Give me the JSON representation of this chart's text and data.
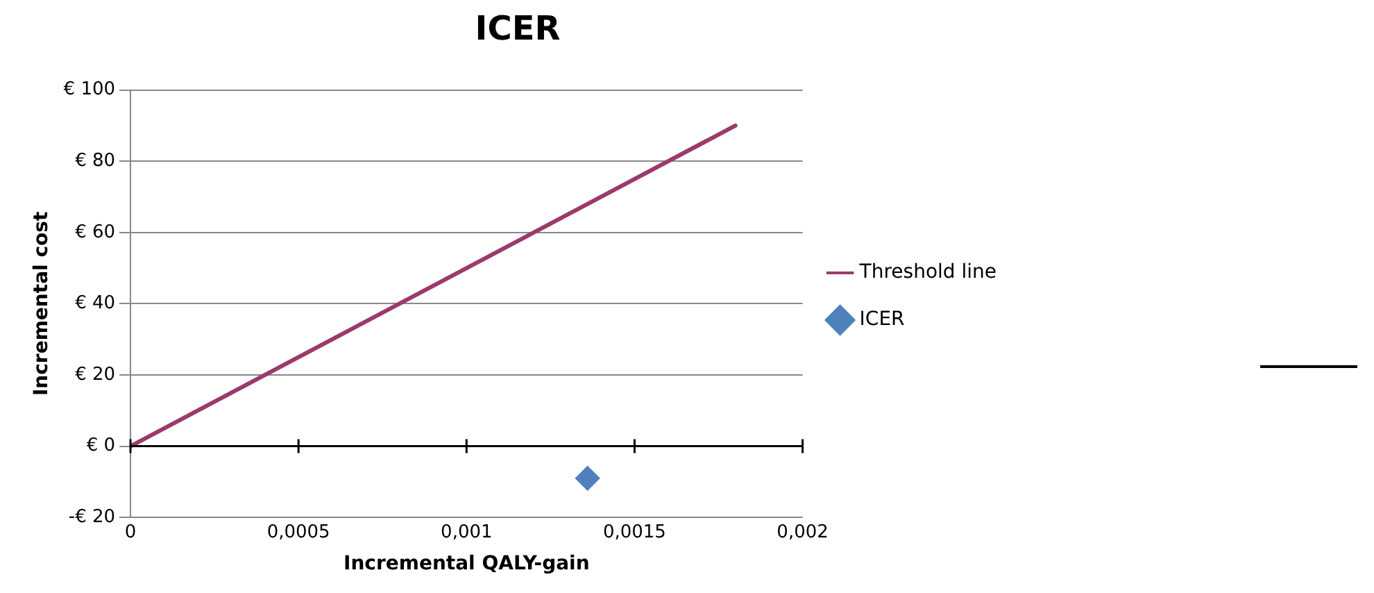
{
  "chart_data": {
    "type": "scatter",
    "title": "ICER",
    "xlabel": "Incremental QALY-gain",
    "ylabel": "Incremental cost",
    "series": [
      {
        "name": "Threshold line",
        "type": "line",
        "color": "#9b3a6b",
        "marker": "none",
        "x": [
          0,
          0.0018
        ],
        "values": [
          0,
          90
        ]
      },
      {
        "name": "ICER",
        "color": "#4f81bd",
        "marker": "diamond",
        "x": [
          0.00136
        ],
        "values": [
          -9
        ]
      }
    ],
    "xlim": [
      0,
      0.002
    ],
    "xticks": [
      0,
      {
        "value": 0.0005,
        "label": "0,0005"
      },
      {
        "value": 0.001,
        "label": "0,001"
      },
      {
        "value": 0.0015,
        "label": "0,0015"
      },
      {
        "value": 0.002,
        "label": "0,002"
      }
    ],
    "ylim": [
      -20,
      100
    ],
    "yticks": [
      {
        "value": -20,
        "label": "-€ 20"
      },
      {
        "value": 0,
        "label": "€ 0"
      },
      {
        "value": 20,
        "label": "€ 20"
      },
      {
        "value": 40,
        "label": "€ 40"
      },
      {
        "value": 60,
        "label": "€ 60"
      },
      {
        "value": 80,
        "label": "€ 80"
      },
      {
        "value": 100,
        "label": "€ 100"
      }
    ],
    "grid": "y",
    "legend": "right"
  }
}
